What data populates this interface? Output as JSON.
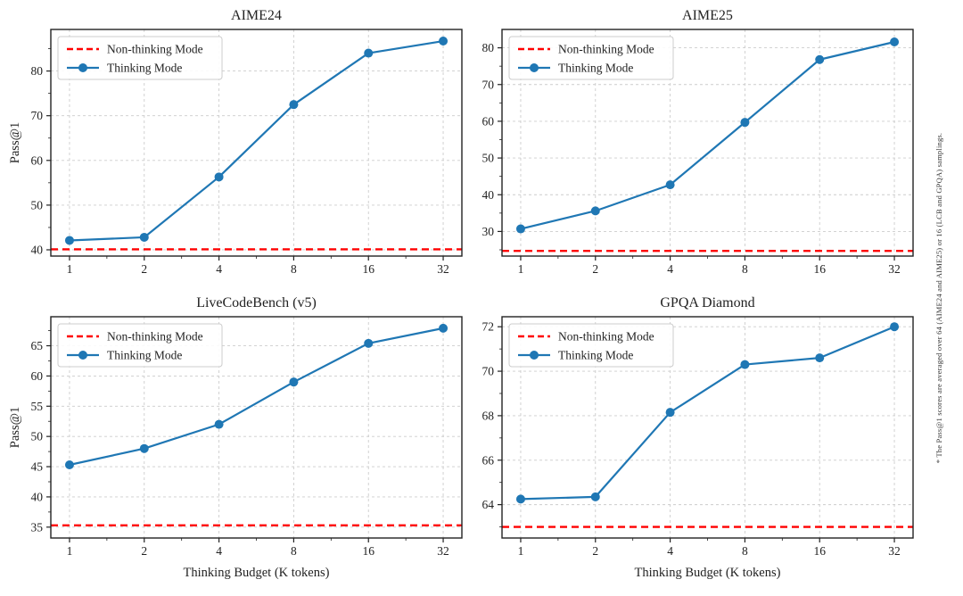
{
  "figure": {
    "ylabel": "Pass@1",
    "xlabel": "Thinking Budget (K tokens)",
    "footnote": "* The Pass@1 scores are averaged over 64 (AIME24 and AIME25) or 16 (LCB and GPQA) samplings.",
    "legend": {
      "non_thinking_label": "Non-thinking Mode",
      "thinking_label": "Thinking Mode"
    }
  },
  "colors": {
    "thinking": "#1f77b4",
    "non_thinking": "#ff0000",
    "grid": "#cccccc",
    "axis": "#222222",
    "text": "#222222",
    "legend_border": "#cccccc",
    "legend_bg": "#ffffff"
  },
  "chart_data": [
    {
      "type": "line",
      "title": "AIME24",
      "xlabel": "Thinking Budget (K tokens)",
      "ylabel": "Pass@1",
      "x_scale": "log2",
      "x": [
        1,
        2,
        4,
        8,
        16,
        32
      ],
      "series": [
        {
          "name": "Thinking Mode",
          "values": [
            42.1,
            42.8,
            56.3,
            72.5,
            84.0,
            86.7
          ]
        },
        {
          "name": "Non-thinking Mode",
          "constant": 40.1
        }
      ],
      "yticks": [
        40,
        50,
        60,
        70,
        80
      ],
      "ylim": [
        38.6,
        89.3
      ],
      "xlim_log2": [
        -0.25,
        5.25
      ],
      "grid": true,
      "legend_position": "upper left"
    },
    {
      "type": "line",
      "title": "AIME25",
      "xlabel": "Thinking Budget (K tokens)",
      "ylabel": "Pass@1",
      "x_scale": "log2",
      "x": [
        1,
        2,
        4,
        8,
        16,
        32
      ],
      "series": [
        {
          "name": "Thinking Mode",
          "values": [
            30.7,
            35.6,
            42.7,
            59.7,
            76.8,
            81.6
          ]
        },
        {
          "name": "Non-thinking Mode",
          "constant": 24.7
        }
      ],
      "yticks": [
        30,
        40,
        50,
        60,
        70,
        80
      ],
      "ylim": [
        23.3,
        85.0
      ],
      "xlim_log2": [
        -0.25,
        5.25
      ],
      "grid": true,
      "legend_position": "upper left"
    },
    {
      "type": "line",
      "title": "LiveCodeBench (v5)",
      "xlabel": "Thinking Budget (K tokens)",
      "ylabel": "Pass@1",
      "x_scale": "log2",
      "x": [
        1,
        2,
        4,
        8,
        16,
        32
      ],
      "series": [
        {
          "name": "Thinking Mode",
          "values": [
            45.3,
            48.0,
            52.0,
            59.0,
            65.4,
            67.9
          ]
        },
        {
          "name": "Non-thinking Mode",
          "constant": 35.3
        }
      ],
      "yticks": [
        35,
        40,
        45,
        50,
        55,
        60,
        65
      ],
      "ylim": [
        33.2,
        69.8
      ],
      "xlim_log2": [
        -0.25,
        5.25
      ],
      "grid": true,
      "legend_position": "upper left"
    },
    {
      "type": "line",
      "title": "GPQA Diamond",
      "xlabel": "Thinking Budget (K tokens)",
      "ylabel": "Pass@1",
      "x_scale": "log2",
      "x": [
        1,
        2,
        4,
        8,
        16,
        32
      ],
      "series": [
        {
          "name": "Thinking Mode",
          "values": [
            64.25,
            64.35,
            68.15,
            70.3,
            70.6,
            72.0
          ]
        },
        {
          "name": "Non-thinking Mode",
          "constant": 63.0
        }
      ],
      "yticks": [
        64,
        66,
        68,
        70,
        72
      ],
      "ylim": [
        62.5,
        72.45
      ],
      "xlim_log2": [
        -0.25,
        5.25
      ],
      "grid": true,
      "legend_position": "upper left"
    }
  ]
}
